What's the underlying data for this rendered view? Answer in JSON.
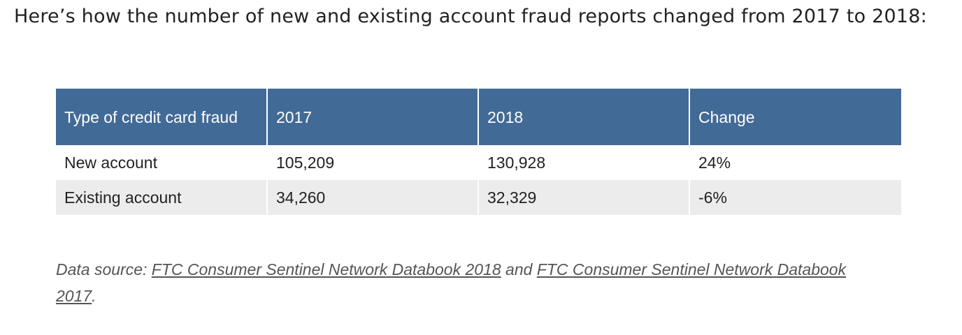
{
  "intro": {
    "text": "Here’s how the number of new and existing account fraud reports changed from 2017 to 2018:"
  },
  "table": {
    "headers": [
      "Type of credit card fraud",
      "2017",
      "2018",
      "Change"
    ],
    "rows": [
      [
        "New account",
        "105,209",
        "130,928",
        "24%"
      ],
      [
        "Existing account",
        "34,260",
        "32,329",
        "-6%"
      ]
    ],
    "header_color": "#426a96",
    "stripe_color": "#ececec"
  },
  "source": {
    "prefix": "Data source: ",
    "link1": "FTC Consumer Sentinel Network Databook 2018",
    "middle": " and ",
    "link2": "FTC Consumer Sentinel Network Databook 2017",
    "suffix": "."
  }
}
